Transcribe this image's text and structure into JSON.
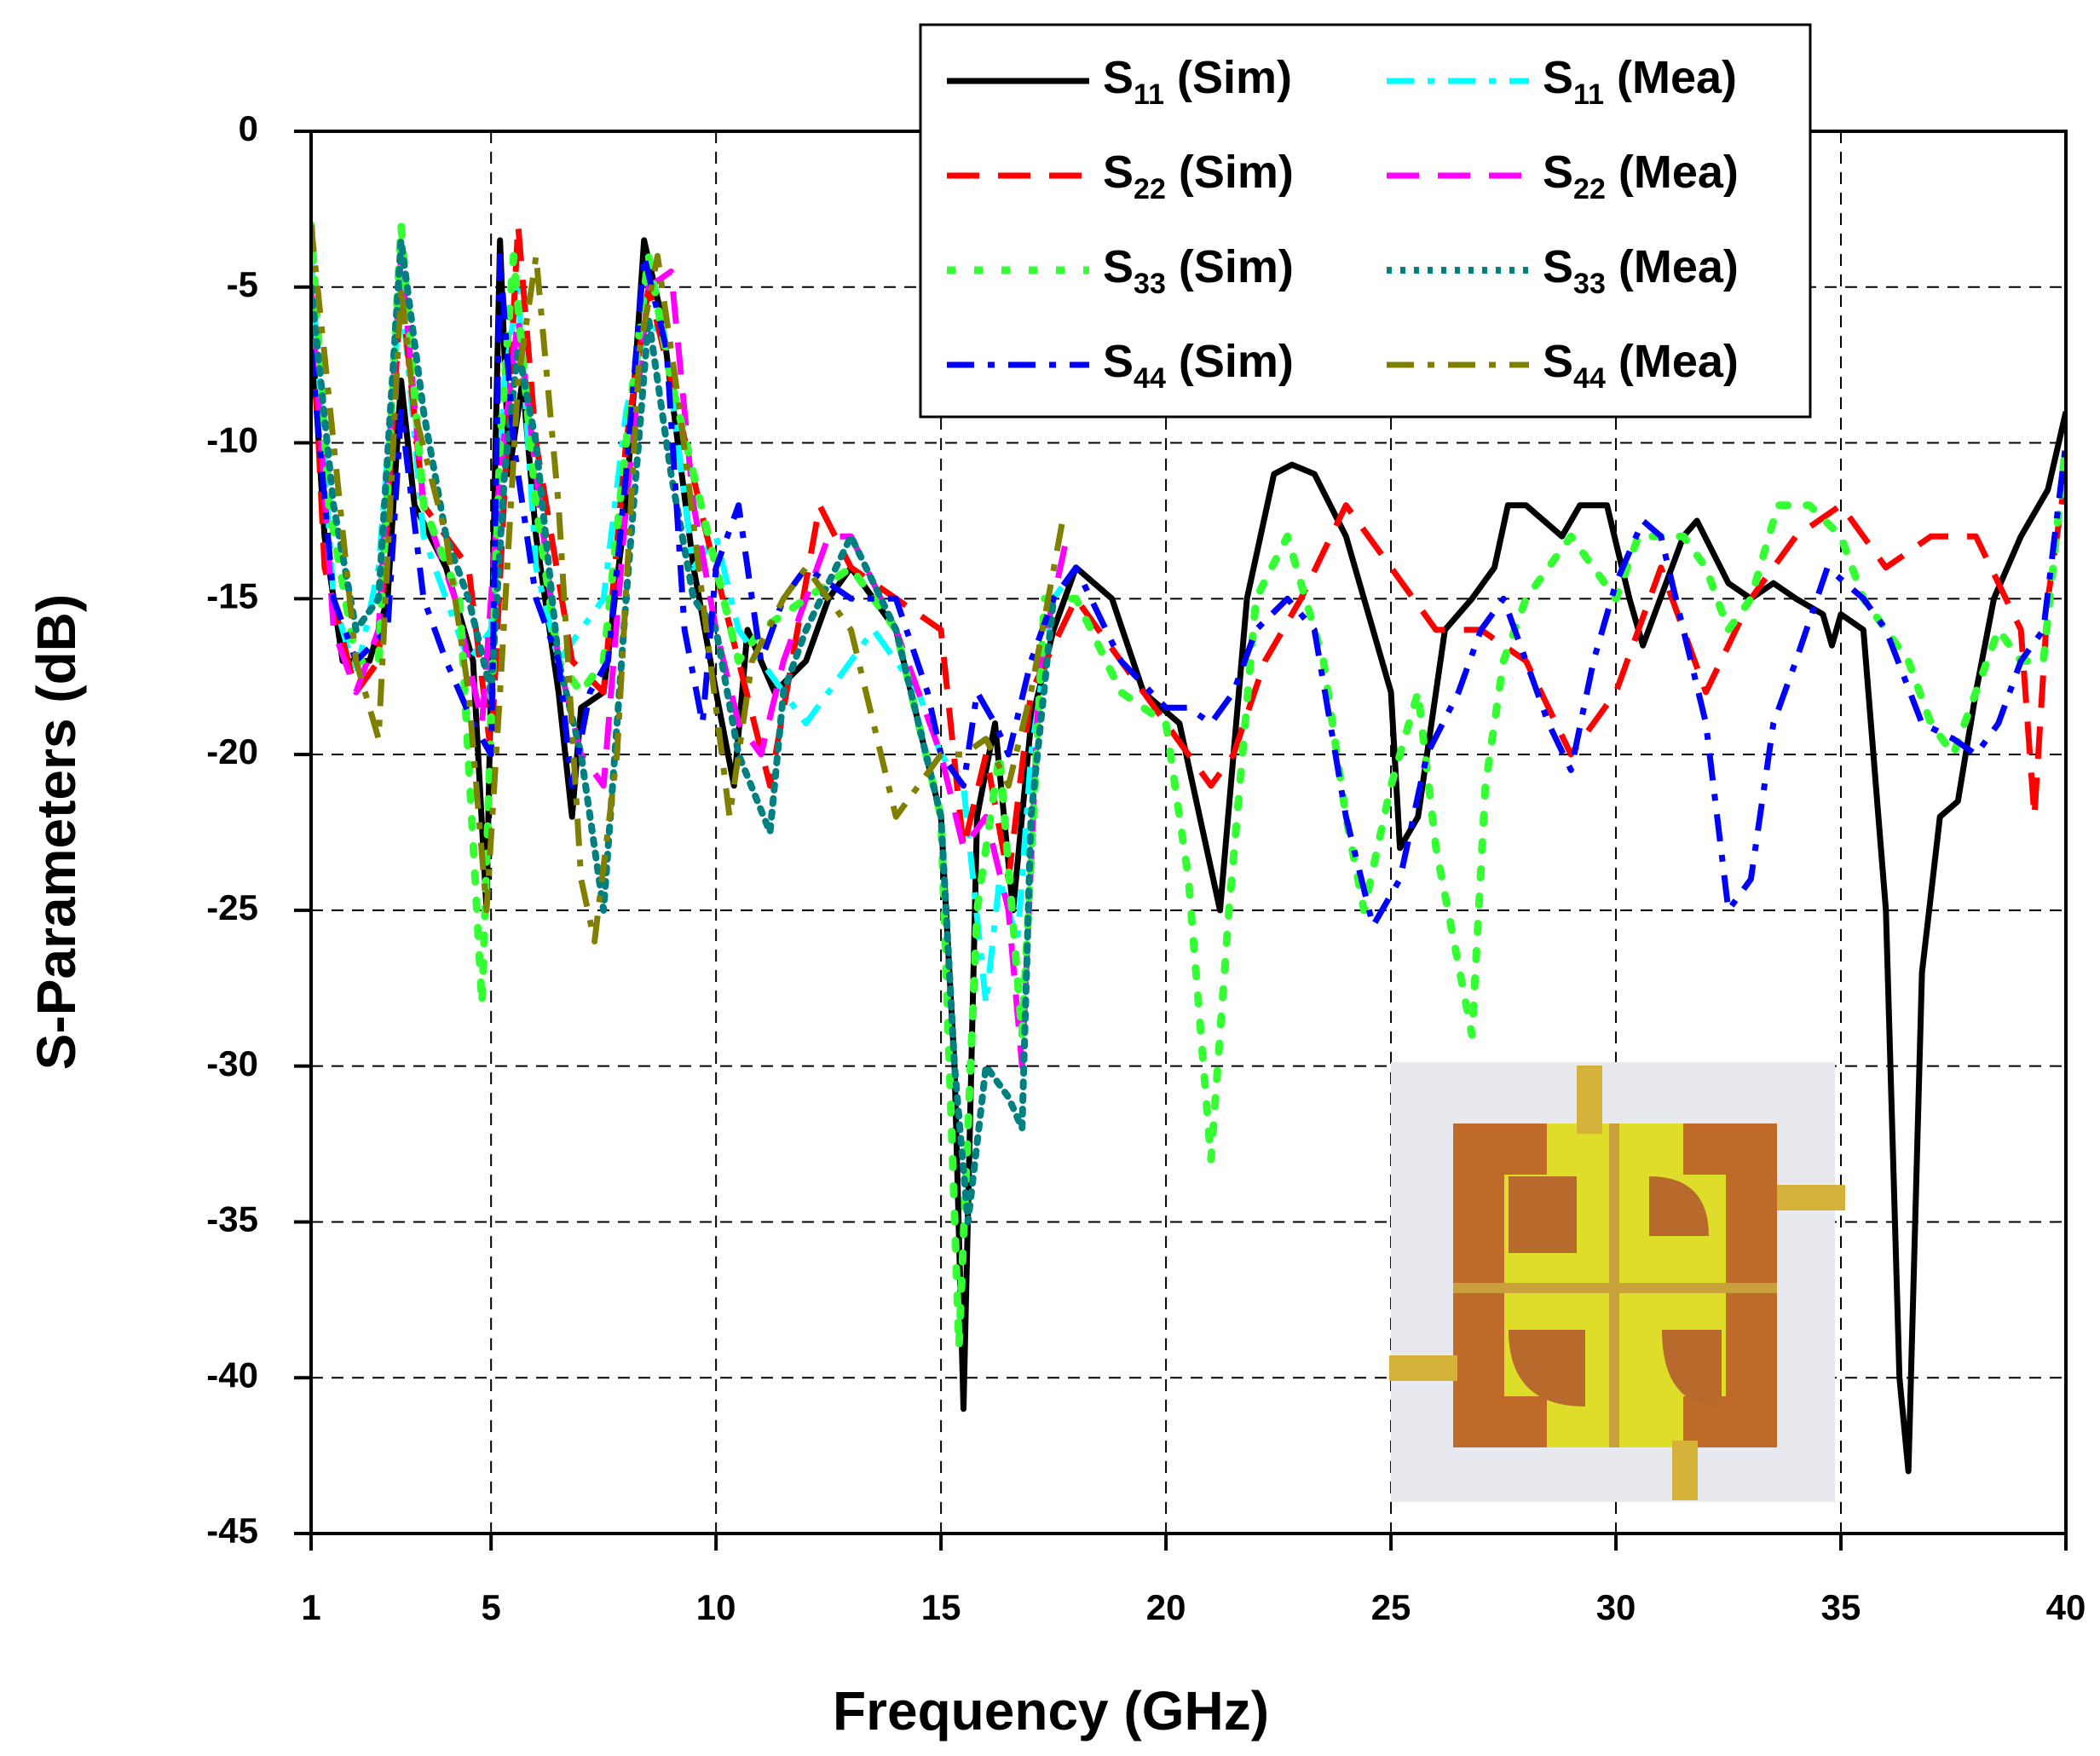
{
  "chart_data": {
    "type": "line",
    "xlabel": "Frequency (GHz)",
    "ylabel": "S-Parameters (dB)",
    "xlim": [
      1,
      40
    ],
    "ylim": [
      -45,
      0
    ],
    "xticks": [
      1,
      5,
      10,
      15,
      20,
      25,
      30,
      35,
      40
    ],
    "yticks": [
      0,
      -5,
      -10,
      -15,
      -20,
      -25,
      -30,
      -35,
      -40,
      -45
    ],
    "grid": true,
    "legend": "upper right",
    "series": [
      {
        "name": "S11 (Sim)",
        "color": "#000000",
        "dash": "solid",
        "x": [
          1,
          1.3,
          1.7,
          2.3,
          2.7,
          3,
          3.3,
          4,
          4.6,
          4.9,
          5.1,
          5.2,
          5.4,
          5.7,
          6,
          6.5,
          6.8,
          7,
          7.5,
          8,
          8.4,
          8.8,
          9.5,
          10,
          10.4,
          10.7,
          11.3,
          12,
          12.5,
          13,
          13.5,
          14,
          14.5,
          15,
          15.3,
          15.5,
          15.8,
          16.2,
          16.6,
          17,
          17.5,
          18,
          18.8,
          19.5,
          20.3,
          21.2,
          21.8,
          22.4,
          22.8,
          23.3,
          24,
          25,
          25.2,
          25.6,
          26.2,
          26.8,
          27.3,
          27.6,
          28,
          28.8,
          29.2,
          29.8,
          30.3,
          30.6,
          31.5,
          31.8,
          32.5,
          33,
          33.5,
          34,
          34.6,
          34.8,
          35,
          35.5,
          36,
          36.3,
          36.5,
          36.8,
          37.2,
          37.6,
          38,
          38.4,
          39,
          39.6,
          40
        ],
        "values": [
          -6,
          -13,
          -17,
          -17,
          -15,
          -8,
          -12,
          -14,
          -17,
          -25,
          -10,
          -3.5,
          -11,
          -8,
          -13,
          -18,
          -22,
          -18.5,
          -18,
          -12,
          -3.5,
          -6,
          -14,
          -18,
          -21,
          -16,
          -18,
          -17,
          -15,
          -14,
          -15,
          -16,
          -19,
          -22,
          -30,
          -41,
          -22,
          -19,
          -25,
          -19,
          -16,
          -14,
          -15,
          -18,
          -19,
          -25,
          -15,
          -11,
          -10.7,
          -11,
          -13,
          -18,
          -23,
          -22,
          -16,
          -15,
          -14,
          -12,
          -12,
          -13,
          -12,
          -12,
          -15,
          -16.5,
          -13,
          -12.5,
          -14.5,
          -15,
          -14.5,
          -15,
          -15.5,
          -16.5,
          -15.5,
          -16,
          -25,
          -40,
          -43,
          -27,
          -22,
          -21.5,
          -18,
          -15,
          -13,
          -11.5,
          -9
        ]
      },
      {
        "name": "S11 (Mea)",
        "color": "#00ffff",
        "dash": "dashdot",
        "x": [
          1,
          1.5,
          2,
          2.5,
          3,
          3.5,
          4,
          4.5,
          5,
          5.3,
          5.6,
          6,
          6.5,
          7,
          7.5,
          8,
          8.3,
          8.8,
          9.5,
          10,
          10.5,
          11,
          12,
          12.5,
          13.5,
          14.5,
          15,
          15.5,
          16,
          16.3,
          16.7,
          17,
          17.5,
          18
        ],
        "values": [
          -4,
          -15,
          -17.5,
          -14,
          -5,
          -13,
          -15,
          -17,
          -16,
          -8,
          -5,
          -14,
          -17,
          -16,
          -15,
          -9,
          -7,
          -6,
          -14,
          -13,
          -16,
          -17,
          -19,
          -18,
          -16,
          -18,
          -20,
          -21,
          -28,
          -24,
          -26,
          -20,
          -15,
          -14
        ]
      },
      {
        "name": "S22 (Sim)",
        "color": "#ff0000",
        "dash": "dash",
        "x": [
          1,
          1.3,
          2,
          2.5,
          3,
          3.5,
          4.5,
          5,
          5.6,
          6,
          6.8,
          7.5,
          8,
          8.5,
          9,
          9.8,
          10.5,
          11.2,
          12.3,
          13,
          14,
          15,
          15.5,
          16,
          16.5,
          17,
          18,
          19,
          20,
          21,
          21.5,
          22.2,
          23,
          24,
          25,
          26,
          27,
          28,
          29,
          30,
          31,
          32,
          33,
          34,
          35,
          36,
          37,
          38,
          39,
          39.3,
          39.6,
          40
        ],
        "values": [
          -5,
          -14,
          -18,
          -17,
          -5,
          -12,
          -14,
          -20,
          -3,
          -10,
          -17,
          -18,
          -10,
          -5,
          -8,
          -13,
          -17,
          -21,
          -12,
          -14,
          -15,
          -16,
          -23,
          -20,
          -24,
          -18,
          -15,
          -17,
          -19,
          -21,
          -20,
          -17,
          -15,
          -12,
          -14,
          -16,
          -16,
          -17,
          -20,
          -18,
          -14,
          -18,
          -15,
          -13,
          -12,
          -14,
          -13,
          -13,
          -16,
          -22,
          -15,
          -11
        ]
      },
      {
        "name": "S22 (Mea)",
        "color": "#ff00ff",
        "dash": "dash",
        "x": [
          1,
          1.5,
          2,
          2.5,
          3,
          3.5,
          4.2,
          4.8,
          5.2,
          5.6,
          6,
          6.5,
          7,
          7.5,
          8,
          8.5,
          9,
          9.5,
          10,
          10.5,
          11,
          11.5,
          12.5,
          13,
          14,
          15,
          15.5,
          16,
          16.5,
          16.8,
          17.2,
          17.8
        ],
        "values": [
          -5,
          -16,
          -18,
          -16,
          -4,
          -12,
          -15,
          -19,
          -11,
          -6,
          -11,
          -17,
          -20,
          -21,
          -12,
          -5,
          -4.5,
          -12,
          -16,
          -19,
          -20,
          -17,
          -13,
          -13,
          -16,
          -20,
          -23,
          -22,
          -25,
          -30,
          -17,
          -13
        ]
      },
      {
        "name": "S33 (Sim)",
        "color": "#33ff33",
        "dash": "dot",
        "x": [
          1,
          1.4,
          2,
          2.5,
          3,
          3.5,
          4.3,
          4.8,
          5.2,
          5.5,
          6,
          6.5,
          7,
          7.5,
          8,
          8.5,
          9,
          10,
          10.5,
          11,
          12,
          13,
          14,
          15,
          15.4,
          15.8,
          16.3,
          16.8,
          17.3,
          18,
          19,
          20,
          20.5,
          21,
          21.4,
          22,
          22.7,
          23.5,
          24,
          24.4,
          25,
          25.6,
          26,
          26.8,
          27.1,
          27.5,
          28,
          28.5,
          29,
          29.5,
          30,
          30.5,
          31.5,
          32,
          32.5,
          33,
          33.6,
          34.3,
          35,
          35.5,
          36.5,
          37,
          37.5,
          38,
          38.5,
          39,
          39.5,
          40
        ],
        "values": [
          -3,
          -12,
          -17,
          -17,
          -3,
          -12,
          -15,
          -28,
          -10,
          -4,
          -12,
          -17,
          -18,
          -17,
          -10,
          -4,
          -8,
          -14,
          -17,
          -16,
          -15,
          -14,
          -16,
          -22,
          -39,
          -25,
          -20,
          -29,
          -15,
          -15,
          -18,
          -19,
          -24,
          -33,
          -25,
          -15,
          -13,
          -17,
          -22,
          -25,
          -21,
          -18,
          -23,
          -29,
          -21,
          -17,
          -15,
          -14,
          -13,
          -14,
          -15,
          -13,
          -13,
          -14,
          -16,
          -15,
          -12,
          -12,
          -13,
          -15,
          -17,
          -19,
          -20,
          -18,
          -16,
          -17,
          -17,
          -10
        ]
      },
      {
        "name": "S33 (Mea)",
        "color": "#008080",
        "dash": "fine",
        "x": [
          1,
          1.5,
          2,
          2.5,
          3,
          3.5,
          4,
          4.5,
          5,
          5.3,
          5.6,
          6,
          6.5,
          7,
          7.5,
          8,
          8.5,
          9,
          9.5,
          10,
          10.5,
          11.2,
          11.5,
          12,
          13,
          14,
          15,
          15.3,
          15.6,
          16,
          16.5,
          16.8,
          17,
          17.5
        ],
        "values": [
          -5,
          -12,
          -16,
          -15,
          -3.5,
          -9,
          -13,
          -15,
          -18,
          -11,
          -7,
          -10,
          -17,
          -20,
          -25,
          -15,
          -6,
          -11,
          -15,
          -16,
          -20,
          -22.5,
          -18,
          -16,
          -13,
          -16,
          -22,
          -30,
          -35,
          -30,
          -31,
          -32,
          -22,
          -15
        ]
      },
      {
        "name": "S44 (Sim)",
        "color": "#0000ff",
        "dash": "dashdot",
        "x": [
          1,
          1.5,
          2,
          2.7,
          3,
          3.5,
          4,
          4.6,
          5,
          5.2,
          5.5,
          6,
          6.5,
          6.8,
          7.2,
          7.6,
          8,
          8.4,
          8.9,
          9.3,
          9.7,
          10,
          10.5,
          11,
          11.5,
          12,
          13,
          14,
          14.7,
          15,
          15.5,
          15.8,
          16.2,
          16.5,
          17,
          17.5,
          18,
          19,
          20,
          20.5,
          21,
          21.5,
          22,
          22.7,
          23.3,
          24,
          24.6,
          25.2,
          25.8,
          26.5,
          27,
          27.5,
          28,
          28.5,
          29,
          29.5,
          30,
          30.6,
          31,
          31.5,
          32,
          32.5,
          33,
          33.5,
          34,
          34.7,
          35.5,
          36,
          36.8,
          37.5,
          38,
          38.5,
          39,
          39.5,
          40
        ],
        "values": [
          -7,
          -15,
          -17,
          -16,
          -9,
          -15,
          -17,
          -19,
          -20,
          -4,
          -10,
          -15,
          -17,
          -21,
          -18,
          -17,
          -11,
          -4,
          -7,
          -16,
          -19,
          -14,
          -12,
          -17,
          -15,
          -14,
          -15,
          -15,
          -18,
          -20,
          -21,
          -18,
          -19,
          -20,
          -17,
          -15,
          -14,
          -17,
          -18.5,
          -18.5,
          -19,
          -18,
          -16,
          -15,
          -16,
          -22,
          -25.5,
          -24,
          -20,
          -18,
          -16,
          -15,
          -17,
          -19,
          -20.5,
          -17,
          -14.5,
          -12.5,
          -13,
          -16,
          -19,
          -25,
          -24,
          -19,
          -17,
          -14,
          -15,
          -16,
          -19,
          -19.5,
          -20,
          -19,
          -17,
          -16,
          -10
        ]
      },
      {
        "name": "S44 (Mea)",
        "color": "#808000",
        "dash": "dashdot",
        "x": [
          1,
          1.5,
          2,
          2.5,
          3,
          3.3,
          4,
          4.5,
          4.9,
          5.2,
          5.6,
          6,
          6.5,
          7,
          7.3,
          7.8,
          8.3,
          8.7,
          9.2,
          9.7,
          10.3,
          10.8,
          11.5,
          12,
          13,
          14,
          14.5,
          15,
          15.5,
          16,
          16.5,
          17,
          17.7
        ],
        "values": [
          -3,
          -10,
          -17,
          -19.5,
          -5,
          -9,
          -13,
          -18,
          -25,
          -18,
          -8,
          -4,
          -12,
          -24,
          -26,
          -20,
          -7,
          -4,
          -9,
          -15,
          -22,
          -17,
          -15,
          -14,
          -16,
          -22,
          -21,
          -20,
          -20,
          -19.5,
          -21,
          -18,
          -12.5
        ]
      }
    ]
  }
}
